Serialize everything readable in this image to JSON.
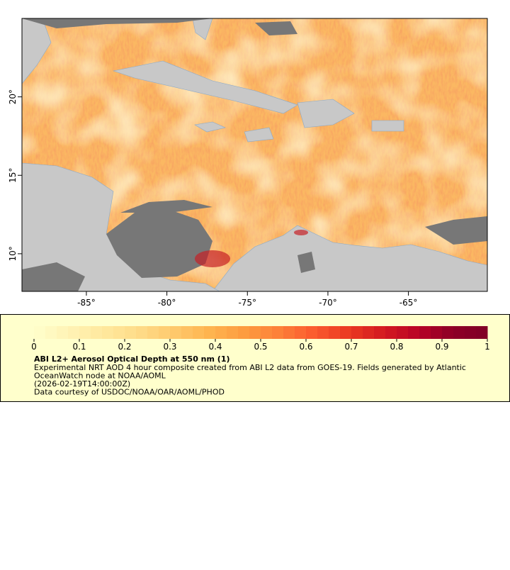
{
  "map": {
    "xlim": [
      -89,
      -60.1
    ],
    "ylim": [
      7.6,
      25
    ],
    "xticks": [
      {
        "value": -85,
        "label": "-85°"
      },
      {
        "value": -80,
        "label": "-80°"
      },
      {
        "value": -75,
        "label": "-75°"
      },
      {
        "value": -70,
        "label": "-70°"
      },
      {
        "value": -65,
        "label": "-65°"
      }
    ],
    "yticks": [
      {
        "value": 10,
        "label": "10°"
      },
      {
        "value": 15,
        "label": "15°"
      },
      {
        "value": 20,
        "label": "20°"
      }
    ]
  },
  "colorbar": {
    "lim": [
      0,
      1
    ],
    "ticks": [
      0,
      0.1,
      0.2,
      0.3,
      0.4,
      0.5,
      0.6,
      0.7,
      0.8,
      0.9,
      1
    ],
    "colors": [
      "#ffffcc",
      "#fff3b5",
      "#ffe89d",
      "#fedc88",
      "#fec96d",
      "#feb550",
      "#fd9c40",
      "#fd8138",
      "#fb5c2e",
      "#eb3a22",
      "#d41b20",
      "#b90326",
      "#8d0026",
      "#800026"
    ]
  },
  "legend": {
    "title": "ABI L2+ Aerosol Optical Depth at 550 nm (1)",
    "lines": [
      "Experimental NRT AOD 4 hour composite created from ABI L2 data from GOES-19. Fields generated by Atlantic",
      "OceanWatch node at NOAA/AOML",
      "(2026-02-19T14:00:00Z)",
      "Data courtesy of USDOC/NOAA/OAR/AOML/PHOD"
    ]
  }
}
